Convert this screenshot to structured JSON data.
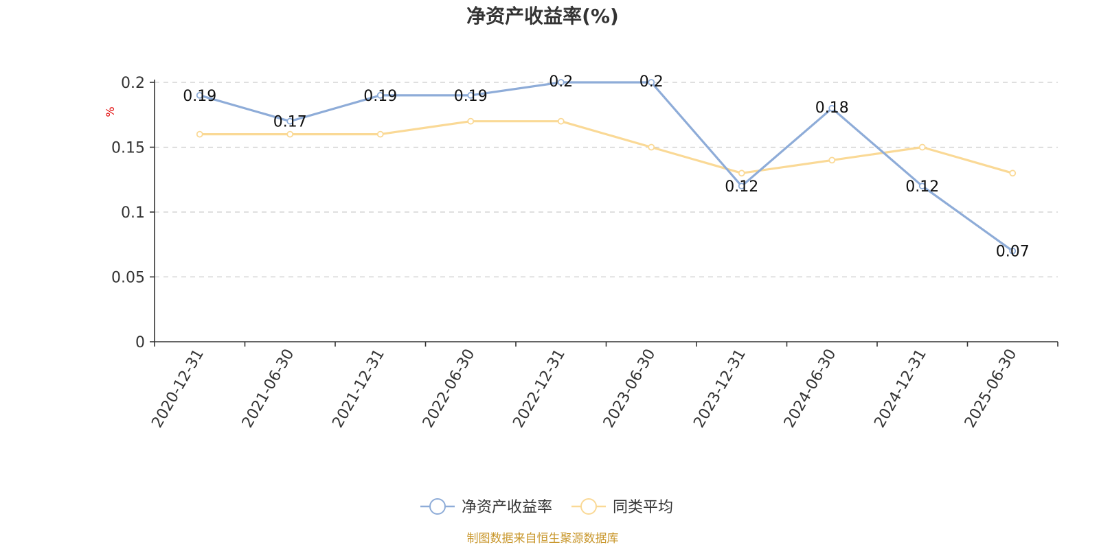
{
  "chart_data": {
    "type": "line",
    "title": "净资产收益率(%)",
    "ylabel": "%",
    "xlabel": "",
    "categories": [
      "2020-12-31",
      "2021-06-30",
      "2021-12-31",
      "2022-06-30",
      "2022-12-31",
      "2023-06-30",
      "2023-12-31",
      "2024-06-30",
      "2024-12-31",
      "2025-06-30"
    ],
    "ylim": [
      0,
      0.2
    ],
    "yticks": [
      "0",
      "0.05",
      "0.1",
      "0.15",
      "0.2"
    ],
    "grid": true,
    "legend_position": "bottom-center",
    "series": [
      {
        "name": "净资产收益率",
        "color": "#8eacd8",
        "values": [
          0.19,
          0.17,
          0.19,
          0.19,
          0.2,
          0.2,
          0.12,
          0.18,
          0.12,
          0.07
        ],
        "labels": [
          "0.19",
          "0.17",
          "0.19",
          "0.19",
          "0.2",
          "0.2",
          "0.12",
          "0.18",
          "0.12",
          "0.07"
        ]
      },
      {
        "name": "同类平均",
        "color": "#fad996",
        "values": [
          0.16,
          0.16,
          0.16,
          0.17,
          0.17,
          0.15,
          0.13,
          0.14,
          0.15,
          0.13
        ]
      }
    ]
  },
  "footer": {
    "source": "制图数据来自恒生聚源数据库"
  }
}
